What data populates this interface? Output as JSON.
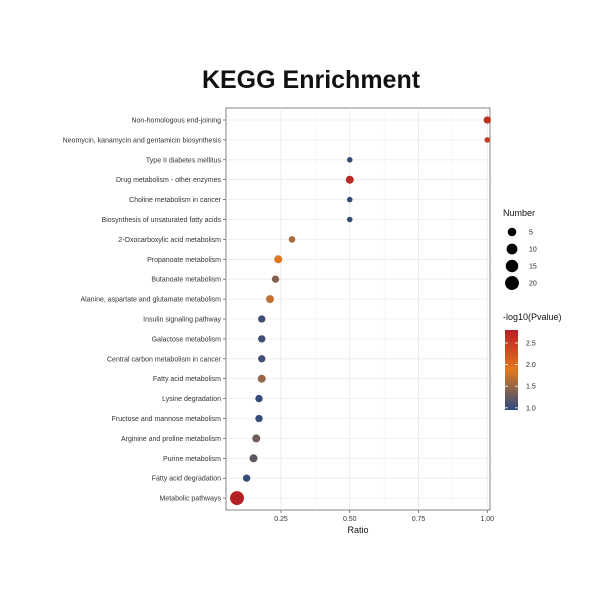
{
  "chart_data": {
    "type": "scatter",
    "title": "KEGG Enrichment",
    "xlabel": "Ratio",
    "ylabel": "",
    "xlim": [
      0.05,
      1.01
    ],
    "xticks": [
      "0.25",
      "0.50",
      "0.75",
      "1.00"
    ],
    "xtick_values": [
      0.25,
      0.5,
      0.75,
      1.0
    ],
    "grid": true,
    "categories": [
      "Non-homologous end-joining",
      "Neomycin, kanamycin and gentamicin biosynthesis",
      "Type II diabetes mellitus",
      "Drug metabolism - other enzymes",
      "Choline metabolism in cancer",
      "Biosynthesis of unsaturated fatty acids",
      "2-Oxocarboxylic acid metabolism",
      "Propanoate metabolism",
      "Butanoate metabolism",
      "Alanine, aspartate and glutamate metabolism",
      "Insulin signaling pathway",
      "Galactose metabolism",
      "Central carbon metabolism in cancer",
      "Fatty acid metabolism",
      "Lysine degradation",
      "Fructose and mannose metabolism",
      "Arginine and proline metabolism",
      "Purine metabolism",
      "Fatty acid degradation",
      "Metabolic pathways"
    ],
    "points": [
      {
        "category": "Non-homologous end-joining",
        "ratio": 1.0,
        "number": 3,
        "neg_log10_p": 2.6
      },
      {
        "category": "Neomycin, kanamycin and gentamicin biosynthesis",
        "ratio": 1.0,
        "number": 1,
        "neg_log10_p": 2.5
      },
      {
        "category": "Type II diabetes mellitus",
        "ratio": 0.5,
        "number": 1,
        "neg_log10_p": 1.0
      },
      {
        "category": "Drug metabolism - other enzymes",
        "ratio": 0.5,
        "number": 4,
        "neg_log10_p": 2.7
      },
      {
        "category": "Choline metabolism in cancer",
        "ratio": 0.5,
        "number": 1,
        "neg_log10_p": 1.0
      },
      {
        "category": "Biosynthesis of unsaturated fatty acids",
        "ratio": 0.5,
        "number": 1,
        "neg_log10_p": 1.0
      },
      {
        "category": "2-Oxocarboxylic acid metabolism",
        "ratio": 0.29,
        "number": 2,
        "neg_log10_p": 1.6
      },
      {
        "category": "Propanoate metabolism",
        "ratio": 0.24,
        "number": 4,
        "neg_log10_p": 1.9
      },
      {
        "category": "Butanoate metabolism",
        "ratio": 0.23,
        "number": 3,
        "neg_log10_p": 1.4
      },
      {
        "category": "Alanine, aspartate and glutamate metabolism",
        "ratio": 0.21,
        "number": 4,
        "neg_log10_p": 1.7
      },
      {
        "category": "Insulin signaling pathway",
        "ratio": 0.18,
        "number": 3,
        "neg_log10_p": 1.05
      },
      {
        "category": "Galactose metabolism",
        "ratio": 0.18,
        "number": 3,
        "neg_log10_p": 1.05
      },
      {
        "category": "Central carbon metabolism in cancer",
        "ratio": 0.18,
        "number": 3,
        "neg_log10_p": 1.05
      },
      {
        "category": "Fatty acid metabolism",
        "ratio": 0.18,
        "number": 4,
        "neg_log10_p": 1.5
      },
      {
        "category": "Lysine degradation",
        "ratio": 0.17,
        "number": 3,
        "neg_log10_p": 1.0
      },
      {
        "category": "Fructose and mannose metabolism",
        "ratio": 0.17,
        "number": 3,
        "neg_log10_p": 1.0
      },
      {
        "category": "Arginine and proline metabolism",
        "ratio": 0.16,
        "number": 4,
        "neg_log10_p": 1.3
      },
      {
        "category": "Purine metabolism",
        "ratio": 0.15,
        "number": 4,
        "neg_log10_p": 1.2
      },
      {
        "category": "Fatty acid degradation",
        "ratio": 0.125,
        "number": 3,
        "neg_log10_p": 1.0
      },
      {
        "category": "Metabolic pathways",
        "ratio": 0.09,
        "number": 20,
        "neg_log10_p": 2.8
      }
    ],
    "size_legend": {
      "title": "Number",
      "values": [
        5,
        10,
        15,
        20
      ],
      "labels": [
        "5",
        "10",
        "15",
        "20"
      ]
    },
    "color_legend": {
      "title": "-log10(Pvalue)",
      "range": [
        0.95,
        2.8
      ],
      "ticks": [
        1.0,
        1.5,
        2.0,
        2.5
      ],
      "labels": [
        "1.0",
        "1.5",
        "2.0",
        "2.5"
      ],
      "colors": {
        "low": "#2c4a7e",
        "mid": "#e0791f",
        "high": "#b52025"
      }
    },
    "legend_placement": "right"
  }
}
